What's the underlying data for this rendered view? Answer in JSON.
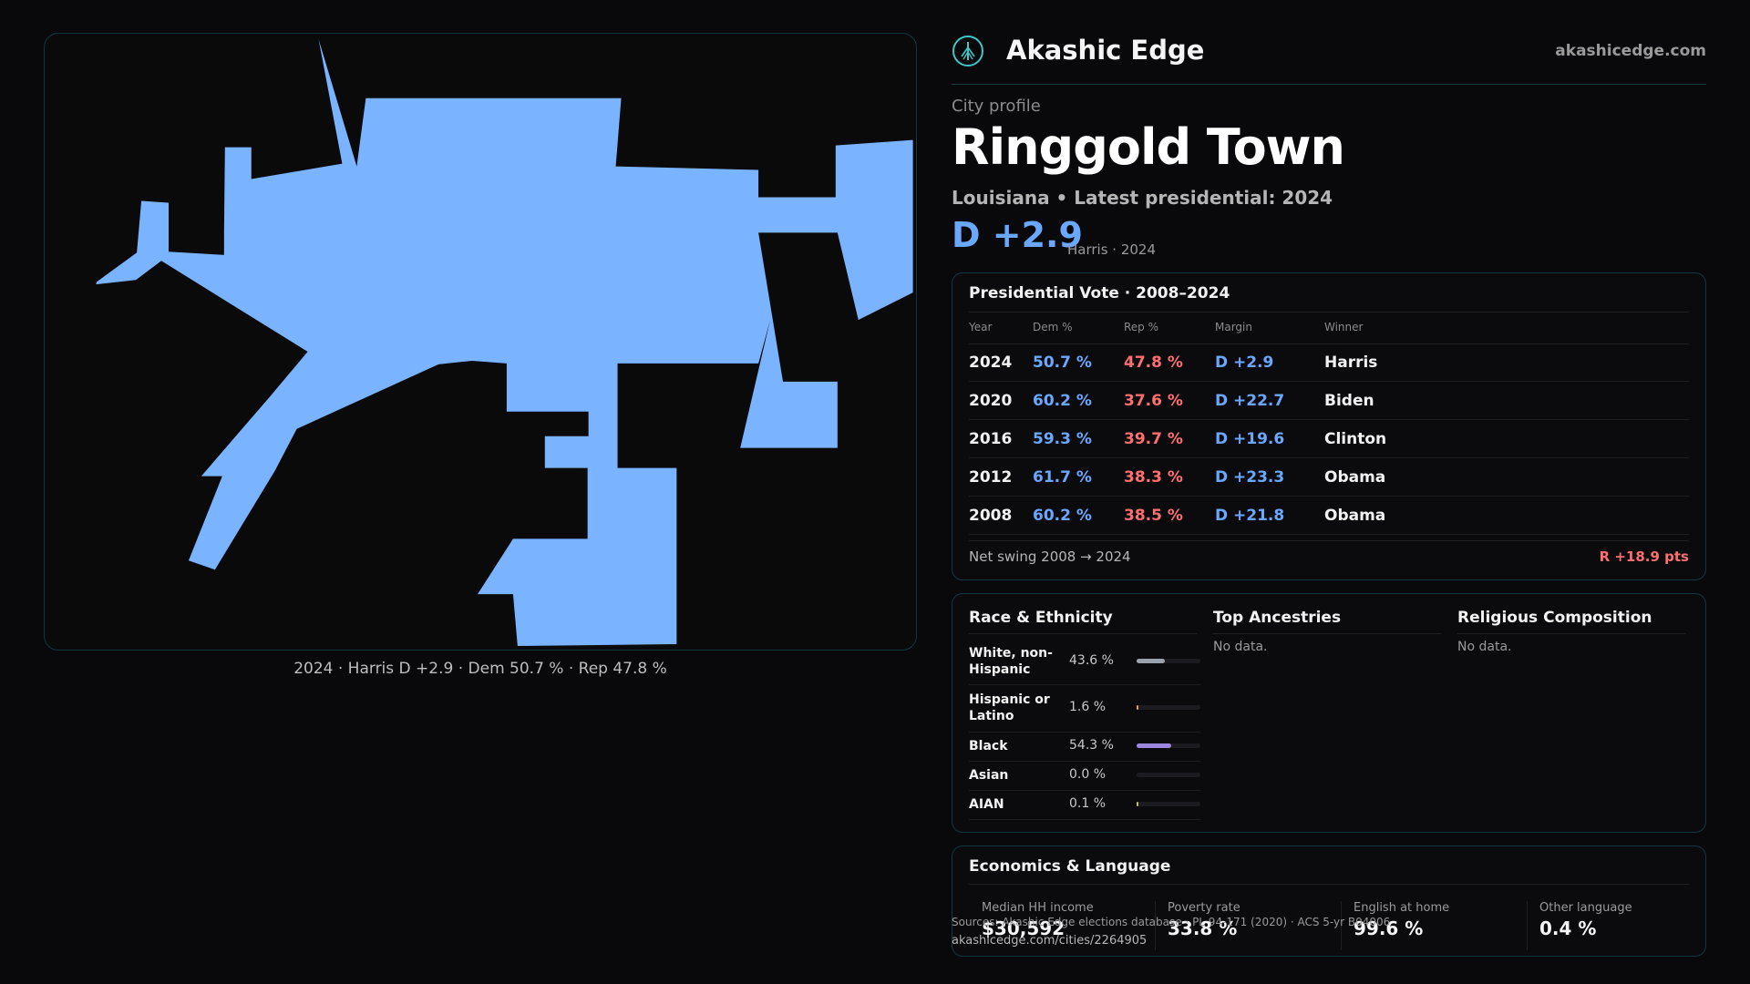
{
  "map": {
    "fill_color": "#7ab3ff",
    "caption": "2024 · Harris D +2.9 · Dem 50.7 % · Rep 47.8 %"
  },
  "brand": {
    "name": "Akashic Edge",
    "url": "akashicedge.com",
    "logo_icon": "tree-logo-icon"
  },
  "profile": {
    "eyebrow": "City profile",
    "title": "Ringgold Town",
    "subtitle": "Louisiana • Latest presidential: 2024",
    "margin": "D +2.9",
    "margin_note": "Harris · 2024"
  },
  "presidential": {
    "title": "Presidential Vote · 2008–2024",
    "columns": [
      "Year",
      "Dem %",
      "Rep %",
      "Margin",
      "Winner"
    ],
    "rows": [
      {
        "year": "2024",
        "dem": "50.7 %",
        "rep": "47.8 %",
        "margin": "D +2.9",
        "winner": "Harris"
      },
      {
        "year": "2020",
        "dem": "60.2 %",
        "rep": "37.6 %",
        "margin": "D +22.7",
        "winner": "Biden"
      },
      {
        "year": "2016",
        "dem": "59.3 %",
        "rep": "39.7 %",
        "margin": "D +19.6",
        "winner": "Clinton"
      },
      {
        "year": "2012",
        "dem": "61.7 %",
        "rep": "38.3 %",
        "margin": "D +23.3",
        "winner": "Obama"
      },
      {
        "year": "2008",
        "dem": "60.2 %",
        "rep": "38.5 %",
        "margin": "D +21.8",
        "winner": "Obama"
      }
    ],
    "swing_label": "Net swing 2008 → 2024",
    "swing_value": "R +18.9 pts"
  },
  "demographics": {
    "race_title": "Race & Ethnicity",
    "race": [
      {
        "label": "White, non-Hispanic",
        "pct": "43.6 %",
        "share": 0.436,
        "color": "#9aa3ad"
      },
      {
        "label": "Hispanic or Latino",
        "pct": "1.6 %",
        "share": 0.016,
        "color": "#e0a060"
      },
      {
        "label": "Black",
        "pct": "54.3 %",
        "share": 0.543,
        "color": "#9b86e0"
      },
      {
        "label": "Asian",
        "pct": "0.0 %",
        "share": 0.0,
        "color": "#5cc8c0"
      },
      {
        "label": "AIAN",
        "pct": "0.1 %",
        "share": 0.001,
        "color": "#c0c060"
      }
    ],
    "ancestry_title": "Top Ancestries",
    "ancestry_empty": "No data.",
    "religion_title": "Religious Composition",
    "religion_empty": "No data."
  },
  "economics": {
    "title": "Economics & Language",
    "stats": [
      {
        "label": "Median HH income",
        "value": "$30,592"
      },
      {
        "label": "Poverty rate",
        "value": "33.8 %"
      },
      {
        "label": "English at home",
        "value": "99.6 %"
      },
      {
        "label": "Other language",
        "value": "0.4 %"
      }
    ]
  },
  "footer": {
    "source": "Sources: Akashic Edge elections database · PL 94-171 (2020) · ACS 5-yr B04006",
    "url": "akashicedge.com/cities/2264905"
  }
}
